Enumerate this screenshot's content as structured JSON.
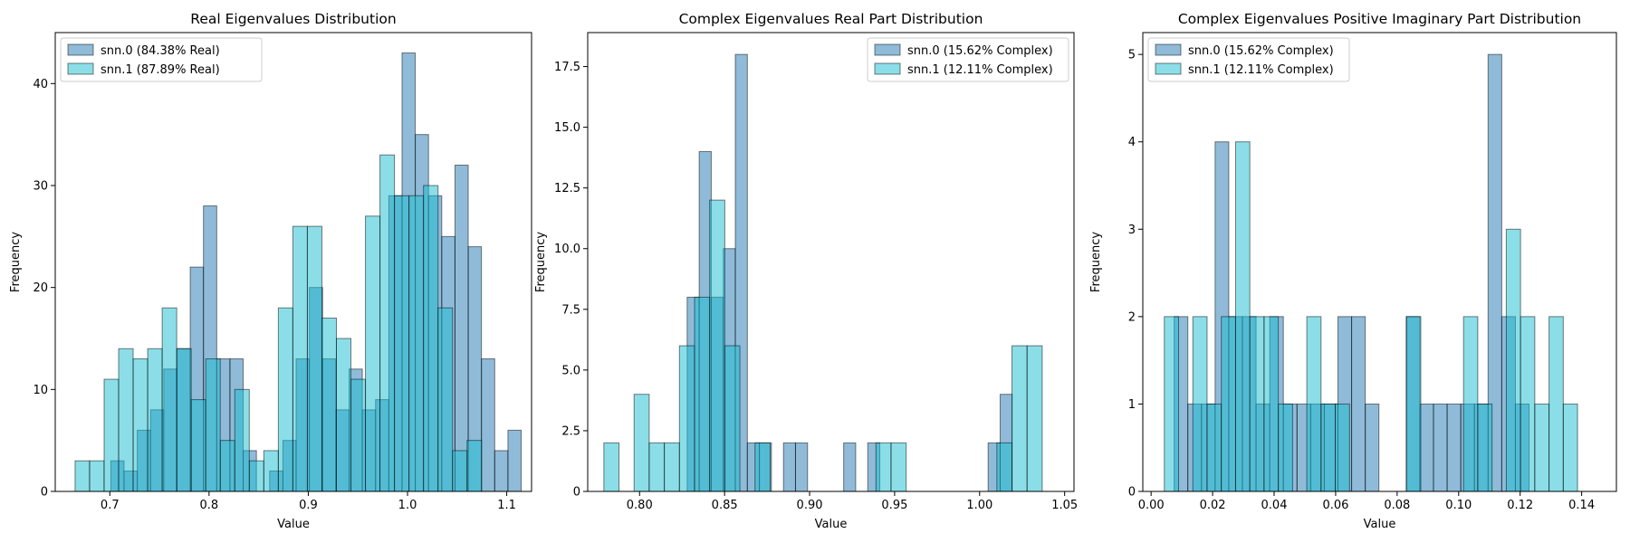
{
  "colors": {
    "series0": "#1f77b4",
    "series1": "#17becf",
    "edge": "#000000",
    "background": "#ffffff",
    "legend_frame": "#cccccc"
  },
  "chart_data": [
    {
      "type": "bar",
      "histogram": true,
      "title": "Real Eigenvalues Distribution",
      "xlabel": "Value",
      "ylabel": "Frequency",
      "xlim": [
        0.645,
        1.125
      ],
      "ylim": [
        0,
        45
      ],
      "xticks": [
        "0.7",
        "0.8",
        "0.9",
        "1.0",
        "1.1"
      ],
      "xtick_values": [
        0.7,
        0.8,
        0.9,
        1.0,
        1.1
      ],
      "yticks": [
        "0",
        "10",
        "20",
        "30",
        "40"
      ],
      "ytick_values": [
        0,
        10,
        20,
        30,
        40
      ],
      "legend_position": "upper-left",
      "series": [
        {
          "name": "snn.0 (84.38% Real)",
          "bin_start": 0.701,
          "bin_width": 0.01334,
          "values": [
            3,
            2,
            6,
            8,
            12,
            14,
            22,
            28,
            13,
            13,
            4,
            0,
            2,
            5,
            13,
            20,
            13,
            8,
            12,
            8,
            9,
            29,
            43,
            35,
            29,
            25,
            32,
            24,
            13,
            4,
            6
          ]
        },
        {
          "name": "snn.1 (87.89% Real)",
          "bin_start": 0.665,
          "bin_width": 0.01463,
          "values": [
            3,
            3,
            11,
            14,
            13,
            14,
            18,
            14,
            9,
            13,
            5,
            10,
            3,
            4,
            18,
            26,
            26,
            17,
            15,
            11,
            27,
            33,
            29,
            29,
            30,
            18,
            4,
            5
          ]
        }
      ]
    },
    {
      "type": "bar",
      "histogram": true,
      "title": "Complex Eigenvalues Real Part Distribution",
      "xlabel": "Value",
      "ylabel": "Frequency",
      "xlim": [
        0.7695,
        1.0555
      ],
      "ylim": [
        0,
        18.9
      ],
      "xticks": [
        "0.80",
        "0.85",
        "0.90",
        "0.95",
        "1.00",
        "1.05"
      ],
      "xtick_values": [
        0.8,
        0.85,
        0.9,
        0.95,
        1.0,
        1.05
      ],
      "yticks": [
        "0",
        "2.5",
        "5.0",
        "7.5",
        "10.0",
        "12.5",
        "15.0",
        "17.5"
      ],
      "ytick_values": [
        0,
        2.5,
        5,
        7.5,
        10,
        12.5,
        15,
        17.5
      ],
      "legend_position": "upper-right",
      "series": [
        {
          "name": "snn.0 (15.62% Complex)",
          "bin_start": 0.828,
          "bin_width": 0.00708,
          "values": [
            8,
            14,
            8,
            10,
            18,
            2,
            2,
            0,
            2,
            2,
            0,
            0,
            0,
            2,
            0,
            2,
            0,
            0,
            0,
            0,
            0,
            0,
            0,
            0,
            0,
            2,
            4
          ]
        },
        {
          "name": "snn.1 (12.11% Complex)",
          "bin_start": 0.779,
          "bin_width": 0.00889,
          "values": [
            2,
            0,
            4,
            2,
            2,
            6,
            8,
            12,
            6,
            0,
            2,
            0,
            0,
            0,
            0,
            0,
            0,
            0,
            2,
            2,
            0,
            0,
            0,
            0,
            0,
            0,
            2,
            6,
            6
          ]
        }
      ]
    },
    {
      "type": "bar",
      "histogram": true,
      "title": "Complex Eigenvalues Positive Imaginary Part Distribution",
      "xlabel": "Value",
      "ylabel": "Frequency",
      "xlim": [
        -0.0027,
        0.1513
      ],
      "ylim": [
        0,
        5.25
      ],
      "xticks": [
        "0.00",
        "0.02",
        "0.04",
        "0.06",
        "0.08",
        "0.10",
        "0.12",
        "0.14"
      ],
      "xtick_values": [
        0,
        0.02,
        0.04,
        0.06,
        0.08,
        0.1,
        0.12,
        0.14
      ],
      "yticks": [
        "0",
        "1",
        "2",
        "3",
        "4",
        "5"
      ],
      "ytick_values": [
        0,
        1,
        2,
        3,
        4,
        5
      ],
      "legend_position": "upper-left",
      "series": [
        {
          "name": "snn.0 (15.62% Complex)",
          "bin_start": 0.0075,
          "bin_width": 0.004438,
          "values": [
            2,
            1,
            1,
            4,
            2,
            2,
            1,
            2,
            1,
            1,
            1,
            1,
            2,
            2,
            1,
            0,
            0,
            2,
            1,
            1,
            1,
            1,
            1,
            5,
            2,
            1
          ]
        },
        {
          "name": "snn.1 (12.11% Complex)",
          "bin_start": 0.0043,
          "bin_width": 0.004633,
          "values": [
            2,
            0,
            2,
            1,
            2,
            4,
            2,
            2,
            1,
            0,
            2,
            1,
            1,
            0,
            0,
            0,
            0,
            2,
            0,
            0,
            0,
            2,
            1,
            0,
            3,
            2,
            1,
            2,
            1
          ]
        }
      ]
    }
  ]
}
